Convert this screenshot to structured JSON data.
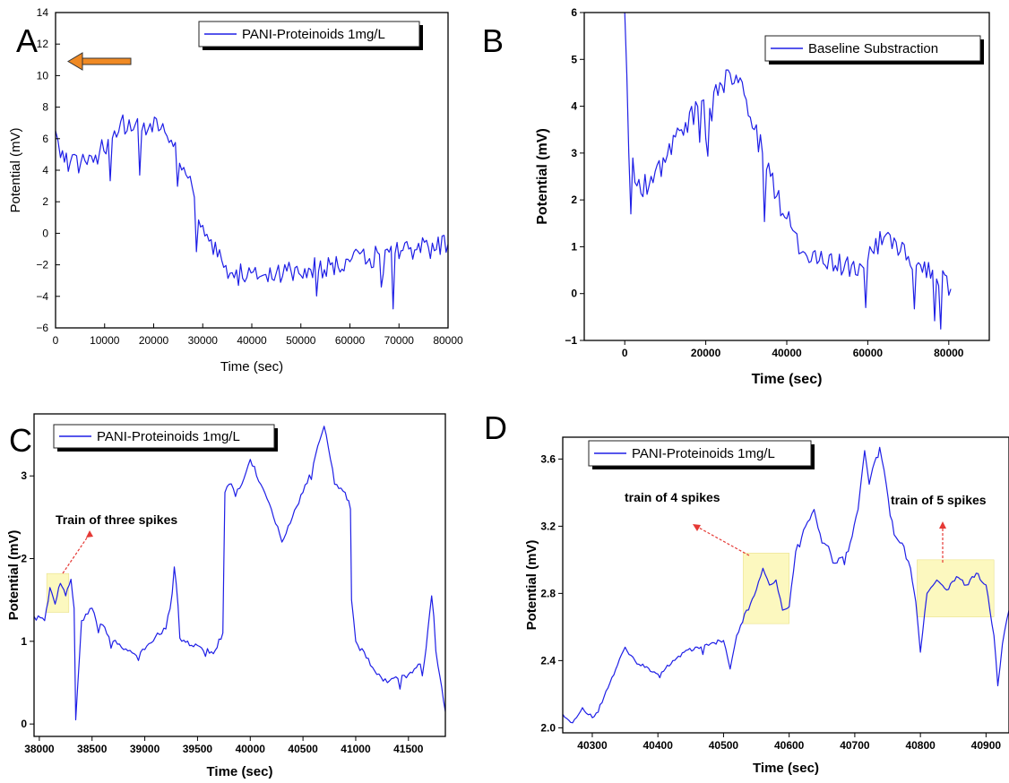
{
  "colors": {
    "series": "#1f1fe6",
    "highlight": "#fbf7b4",
    "annotation_arrow": "#e53935"
  },
  "chart_data": [
    {
      "panel": "A",
      "type": "line",
      "xlabel": "Time (sec)",
      "ylabel": "Potential (mV)",
      "xlim": [
        0,
        80000
      ],
      "ylim": [
        -6,
        14
      ],
      "xticks": [
        0,
        10000,
        20000,
        30000,
        40000,
        50000,
        60000,
        70000,
        80000
      ],
      "yticks": [
        -6,
        -4,
        -2,
        0,
        2,
        4,
        6,
        8,
        10,
        12,
        14
      ],
      "legend": "PANI-Proteinoids 1mg/L",
      "legend_position": "top-right",
      "grid": false,
      "annotation": "arrow pointing left toward y-axis (~11.5 mV)",
      "series": [
        {
          "name": "PANI-Proteinoids 1mg/L",
          "x": [
            0,
            1000,
            3000,
            6000,
            9000,
            12000,
            15000,
            18000,
            21000,
            24000,
            27000,
            30000,
            33000,
            36000,
            39000,
            42000,
            45000,
            48000,
            52000,
            56000,
            60000,
            64000,
            68000,
            72000,
            76000,
            80000
          ],
          "y": [
            6.5,
            4.8,
            4.5,
            4.6,
            5.2,
            6.5,
            7.2,
            7.0,
            6.5,
            5.5,
            3.5,
            0.5,
            -1.5,
            -2.5,
            -2.8,
            -2.7,
            -2.5,
            -2.4,
            -2.3,
            -2.0,
            -1.8,
            -1.6,
            -1.2,
            -1.0,
            -0.9,
            -0.7
          ]
        }
      ]
    },
    {
      "panel": "B",
      "type": "line",
      "xlabel": "Time (sec)",
      "ylabel": "Potential (mV)",
      "xlim": [
        -10000,
        90000
      ],
      "ylim": [
        -1,
        6
      ],
      "xticks": [
        0,
        20000,
        40000,
        60000,
        80000
      ],
      "yticks": [
        -1,
        0,
        1,
        2,
        3,
        4,
        5,
        6
      ],
      "legend": "Baseline Substraction",
      "legend_position": "top-right",
      "grid": false,
      "series": [
        {
          "name": "Baseline Substraction",
          "x": [
            0,
            1000,
            3000,
            6000,
            10000,
            14000,
            18000,
            22000,
            26000,
            28000,
            32000,
            36000,
            40000,
            44000,
            48000,
            52000,
            56000,
            60000,
            64000,
            68000,
            72000,
            76000,
            79000,
            80500
          ],
          "y": [
            6.0,
            3.0,
            2.3,
            2.3,
            2.8,
            3.5,
            4.0,
            4.3,
            4.7,
            4.5,
            3.5,
            2.5,
            1.6,
            0.9,
            0.7,
            0.6,
            0.6,
            0.7,
            1.2,
            0.9,
            0.6,
            0.5,
            0.4,
            0.1
          ]
        }
      ]
    },
    {
      "panel": "C",
      "type": "line",
      "xlabel": "Time (sec)",
      "ylabel": "Potential (mV)",
      "xlim": [
        37950,
        41850
      ],
      "ylim": [
        -0.15,
        3.75
      ],
      "xticks": [
        38000,
        38500,
        39000,
        39500,
        40000,
        40500,
        41000,
        41500
      ],
      "yticks": [
        0,
        1,
        2,
        3
      ],
      "legend": "PANI-Proteinoids 1mg/L",
      "legend_position": "top-left",
      "grid": false,
      "annotation": "Train of three spikes",
      "highlight_range": {
        "x": [
          38070,
          38280
        ],
        "y": [
          1.35,
          1.82
        ]
      },
      "series": [
        {
          "name": "PANI-Proteinoids 1mg/L",
          "x": [
            37950,
            38050,
            38100,
            38150,
            38200,
            38250,
            38300,
            38330,
            38345,
            38400,
            38500,
            38600,
            38700,
            38800,
            38900,
            39000,
            39100,
            39200,
            39280,
            39350,
            39500,
            39650,
            39740,
            39760,
            39800,
            39900,
            40000,
            40100,
            40200,
            40300,
            40400,
            40500,
            40600,
            40700,
            40720,
            40800,
            40900,
            40950,
            40960,
            41000,
            41100,
            41200,
            41300,
            41400,
            41500,
            41650,
            41720,
            41780,
            41850
          ],
          "y": [
            1.3,
            1.25,
            1.65,
            1.45,
            1.7,
            1.55,
            1.75,
            1.4,
            0.05,
            1.25,
            1.4,
            1.2,
            1.0,
            0.9,
            0.85,
            0.9,
            1.05,
            1.15,
            1.9,
            1.0,
            0.95,
            0.85,
            1.1,
            2.8,
            2.9,
            2.85,
            3.2,
            2.9,
            2.6,
            2.2,
            2.5,
            2.8,
            3.15,
            3.6,
            3.5,
            2.9,
            2.8,
            2.6,
            1.5,
            1.0,
            0.8,
            0.6,
            0.5,
            0.55,
            0.6,
            0.75,
            1.55,
            0.7,
            0.15
          ]
        }
      ]
    },
    {
      "panel": "D",
      "type": "line",
      "xlabel": "Time (sec)",
      "ylabel": "Potential (mV)",
      "xlim": [
        40255,
        40935
      ],
      "ylim": [
        1.97,
        3.73
      ],
      "xticks": [
        40300,
        40400,
        40500,
        40600,
        40700,
        40800,
        40900
      ],
      "yticks": [
        2.0,
        2.4,
        2.8,
        3.2,
        3.6
      ],
      "legend": "PANI-Proteinoids 1mg/L",
      "legend_position": "top-left",
      "grid": false,
      "annotations": [
        "train of 4 spikes",
        "train of 5 spikes"
      ],
      "highlight_ranges": [
        {
          "x": [
            40530,
            40600
          ],
          "y": [
            2.62,
            3.04
          ]
        },
        {
          "x": [
            40795,
            40912
          ],
          "y": [
            2.66,
            3.0
          ]
        }
      ],
      "series": [
        {
          "name": "PANI-Proteinoids 1mg/L",
          "x": [
            40255,
            40270,
            40285,
            40300,
            40315,
            40330,
            40350,
            40365,
            40380,
            40400,
            40420,
            40440,
            40460,
            40480,
            40500,
            40510,
            40520,
            40535,
            40550,
            40560,
            40570,
            40580,
            40590,
            40600,
            40610,
            40625,
            40638,
            40650,
            40660,
            40670,
            40690,
            40705,
            40715,
            40722,
            40730,
            40738,
            40748,
            40760,
            40775,
            40785,
            40793,
            40800,
            40810,
            40825,
            40840,
            40855,
            40870,
            40885,
            40900,
            40912,
            40918,
            40925,
            40935
          ],
          "y": [
            2.08,
            2.03,
            2.12,
            2.06,
            2.15,
            2.3,
            2.48,
            2.4,
            2.36,
            2.32,
            2.38,
            2.45,
            2.48,
            2.5,
            2.52,
            2.35,
            2.55,
            2.7,
            2.82,
            2.95,
            2.85,
            2.88,
            2.7,
            2.72,
            3.05,
            3.2,
            3.3,
            3.1,
            3.08,
            2.98,
            3.05,
            3.3,
            3.65,
            3.45,
            3.58,
            3.67,
            3.45,
            3.15,
            3.08,
            2.95,
            2.75,
            2.45,
            2.8,
            2.88,
            2.82,
            2.9,
            2.85,
            2.92,
            2.85,
            2.55,
            2.25,
            2.5,
            2.7
          ]
        }
      ]
    }
  ]
}
